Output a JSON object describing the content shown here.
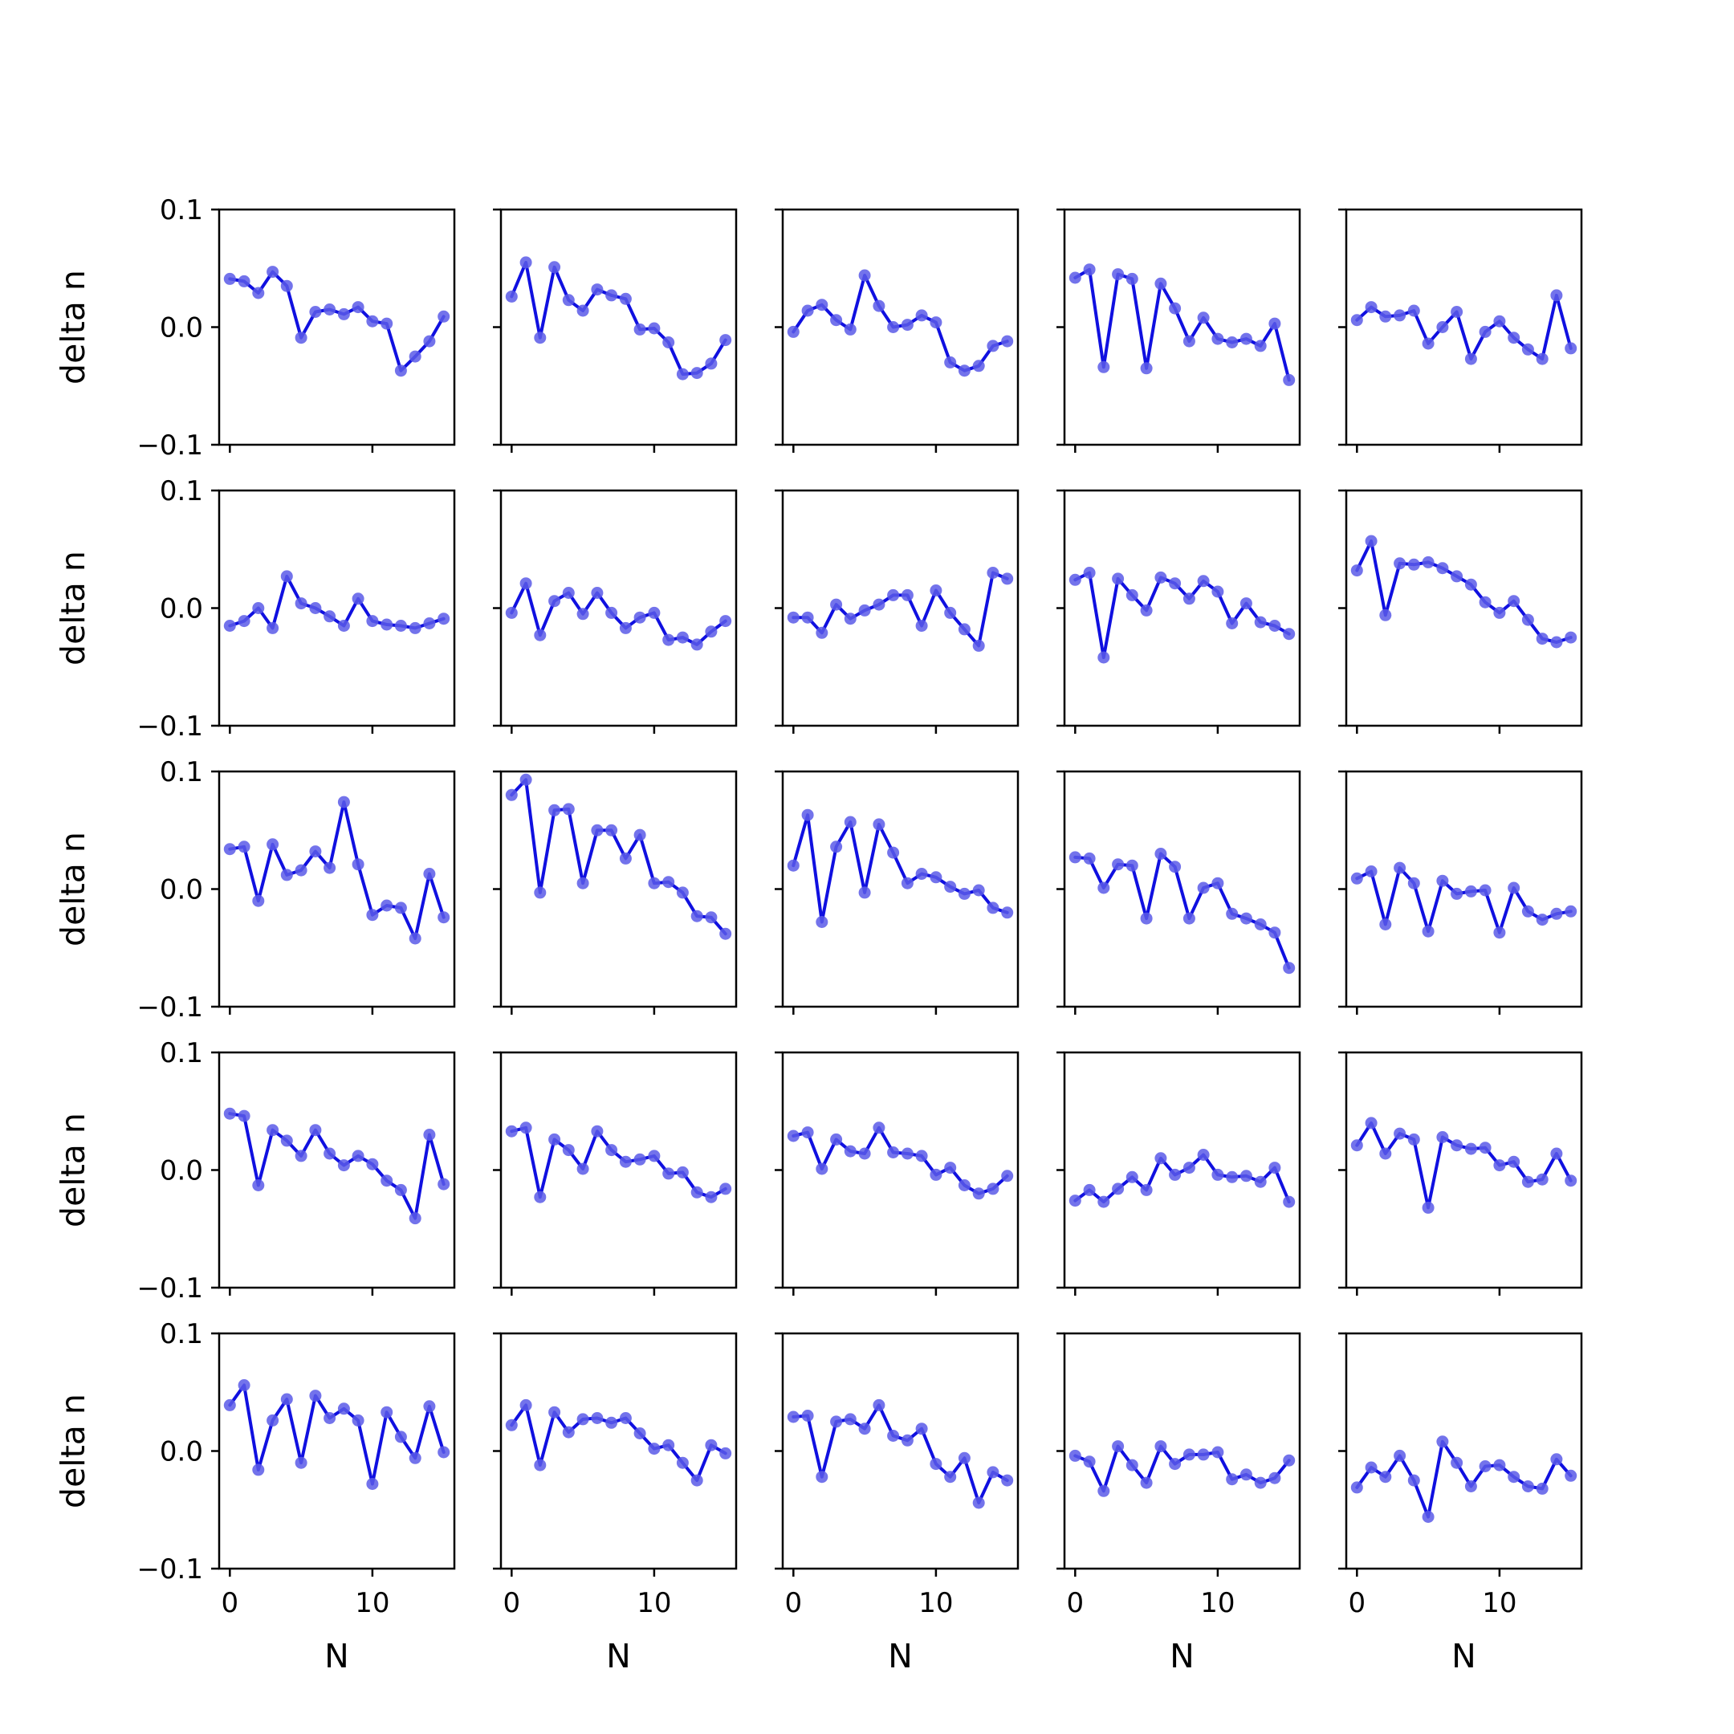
{
  "colors": {
    "line": "#1010e0",
    "marker": "#5a5ae8",
    "axes": "#000000",
    "background": "#ffffff"
  },
  "chart_data": {
    "type": "line",
    "layout": "5x5 grid of small multiples, shared axes",
    "xlabel": "N",
    "ylabel": "delta n",
    "xlim": [
      -0.75,
      15.75
    ],
    "ylim": [
      -0.1,
      0.1
    ],
    "x_ticks": [
      0,
      10
    ],
    "y_ticks": [
      -0.1,
      0.0,
      0.1
    ],
    "x_tick_labels": [
      "0",
      "10"
    ],
    "y_tick_labels": [
      "−0.1",
      "0.0",
      "0.1"
    ],
    "grid": false,
    "legend": false,
    "x": [
      0,
      1,
      2,
      3,
      4,
      5,
      6,
      7,
      8,
      9,
      10,
      11,
      12,
      13,
      14,
      15
    ],
    "panels": [
      {
        "values": [
          0.041,
          0.039,
          0.029,
          0.047,
          0.035,
          -0.009,
          0.013,
          0.015,
          0.011,
          0.017,
          0.005,
          0.003,
          -0.037,
          -0.025,
          -0.012,
          0.009
        ]
      },
      {
        "values": [
          0.026,
          0.055,
          -0.009,
          0.051,
          0.023,
          0.014,
          0.032,
          0.027,
          0.024,
          -0.002,
          -0.001,
          -0.013,
          -0.04,
          -0.039,
          -0.031,
          -0.011
        ]
      },
      {
        "values": [
          -0.004,
          0.014,
          0.019,
          0.006,
          -0.002,
          0.044,
          0.018,
          0.0,
          0.002,
          0.01,
          0.004,
          -0.03,
          -0.037,
          -0.033,
          -0.016,
          -0.012
        ]
      },
      {
        "values": [
          0.042,
          0.049,
          -0.034,
          0.045,
          0.041,
          -0.035,
          0.037,
          0.016,
          -0.012,
          0.008,
          -0.01,
          -0.013,
          -0.01,
          -0.016,
          0.003,
          -0.045
        ]
      },
      {
        "values": [
          0.006,
          0.017,
          0.009,
          0.01,
          0.014,
          -0.014,
          0.0,
          0.013,
          -0.027,
          -0.004,
          0.005,
          -0.009,
          -0.019,
          -0.027,
          0.027,
          -0.018
        ]
      },
      {
        "values": [
          -0.015,
          -0.011,
          0.0,
          -0.017,
          0.027,
          0.004,
          0.0,
          -0.007,
          -0.015,
          0.008,
          -0.011,
          -0.014,
          -0.015,
          -0.017,
          -0.013,
          -0.009
        ]
      },
      {
        "values": [
          -0.004,
          0.021,
          -0.023,
          0.006,
          0.013,
          -0.005,
          0.013,
          -0.004,
          -0.017,
          -0.008,
          -0.004,
          -0.027,
          -0.025,
          -0.031,
          -0.02,
          -0.011
        ]
      },
      {
        "values": [
          -0.008,
          -0.008,
          -0.021,
          0.003,
          -0.009,
          -0.002,
          0.003,
          0.011,
          0.011,
          -0.015,
          0.015,
          -0.004,
          -0.018,
          -0.032,
          0.03,
          0.025
        ]
      },
      {
        "values": [
          0.024,
          0.03,
          -0.042,
          0.025,
          0.011,
          -0.002,
          0.026,
          0.021,
          0.008,
          0.023,
          0.014,
          -0.013,
          0.004,
          -0.012,
          -0.015,
          -0.022
        ]
      },
      {
        "values": [
          0.032,
          0.057,
          -0.006,
          0.038,
          0.037,
          0.039,
          0.034,
          0.027,
          0.02,
          0.005,
          -0.004,
          0.006,
          -0.01,
          -0.026,
          -0.029,
          -0.025
        ]
      },
      {
        "values": [
          0.034,
          0.036,
          -0.01,
          0.038,
          0.012,
          0.016,
          0.032,
          0.018,
          0.074,
          0.021,
          -0.022,
          -0.014,
          -0.016,
          -0.042,
          0.013,
          -0.024
        ]
      },
      {
        "values": [
          0.08,
          0.093,
          -0.003,
          0.067,
          0.068,
          0.005,
          0.05,
          0.05,
          0.026,
          0.046,
          0.005,
          0.006,
          -0.003,
          -0.023,
          -0.024,
          -0.038
        ]
      },
      {
        "values": [
          0.02,
          0.063,
          -0.028,
          0.036,
          0.057,
          -0.003,
          0.055,
          0.031,
          0.005,
          0.013,
          0.01,
          0.002,
          -0.004,
          -0.001,
          -0.016,
          -0.02
        ]
      },
      {
        "values": [
          0.027,
          0.026,
          0.001,
          0.021,
          0.02,
          -0.025,
          0.03,
          0.019,
          -0.025,
          0.001,
          0.005,
          -0.021,
          -0.025,
          -0.03,
          -0.037,
          -0.067
        ]
      },
      {
        "values": [
          0.009,
          0.015,
          -0.03,
          0.018,
          0.005,
          -0.036,
          0.007,
          -0.004,
          -0.002,
          -0.001,
          -0.037,
          0.001,
          -0.019,
          -0.026,
          -0.021,
          -0.019
        ]
      },
      {
        "values": [
          0.048,
          0.046,
          -0.013,
          0.034,
          0.025,
          0.012,
          0.034,
          0.014,
          0.004,
          0.012,
          0.005,
          -0.009,
          -0.017,
          -0.041,
          0.03,
          -0.012
        ]
      },
      {
        "values": [
          0.033,
          0.036,
          -0.023,
          0.026,
          0.017,
          0.001,
          0.033,
          0.017,
          0.007,
          0.009,
          0.012,
          -0.003,
          -0.002,
          -0.019,
          -0.023,
          -0.016
        ]
      },
      {
        "values": [
          0.029,
          0.032,
          0.001,
          0.026,
          0.016,
          0.014,
          0.036,
          0.015,
          0.014,
          0.012,
          -0.004,
          0.002,
          -0.013,
          -0.02,
          -0.016,
          -0.005
        ]
      },
      {
        "values": [
          -0.026,
          -0.017,
          -0.027,
          -0.016,
          -0.006,
          -0.017,
          0.01,
          -0.004,
          0.002,
          0.013,
          -0.004,
          -0.006,
          -0.005,
          -0.01,
          0.002,
          -0.027
        ]
      },
      {
        "values": [
          0.021,
          0.04,
          0.014,
          0.031,
          0.026,
          -0.032,
          0.028,
          0.021,
          0.018,
          0.019,
          0.004,
          0.007,
          -0.01,
          -0.008,
          0.014,
          -0.009
        ]
      },
      {
        "values": [
          0.039,
          0.056,
          -0.016,
          0.026,
          0.044,
          -0.01,
          0.047,
          0.028,
          0.036,
          0.026,
          -0.028,
          0.033,
          0.012,
          -0.006,
          0.038,
          -0.001
        ]
      },
      {
        "values": [
          0.022,
          0.039,
          -0.012,
          0.033,
          0.016,
          0.027,
          0.028,
          0.024,
          0.028,
          0.015,
          0.002,
          0.005,
          -0.01,
          -0.025,
          0.005,
          -0.002
        ]
      },
      {
        "values": [
          0.029,
          0.03,
          -0.022,
          0.025,
          0.027,
          0.019,
          0.039,
          0.013,
          0.009,
          0.019,
          -0.011,
          -0.022,
          -0.006,
          -0.044,
          -0.018,
          -0.025
        ]
      },
      {
        "values": [
          -0.004,
          -0.009,
          -0.034,
          0.004,
          -0.012,
          -0.027,
          0.004,
          -0.011,
          -0.003,
          -0.003,
          -0.001,
          -0.024,
          -0.02,
          -0.027,
          -0.023,
          -0.008
        ]
      },
      {
        "values": [
          -0.031,
          -0.014,
          -0.022,
          -0.004,
          -0.025,
          -0.056,
          0.008,
          -0.01,
          -0.03,
          -0.013,
          -0.012,
          -0.022,
          -0.03,
          -0.032,
          -0.007,
          -0.021
        ]
      }
    ]
  }
}
